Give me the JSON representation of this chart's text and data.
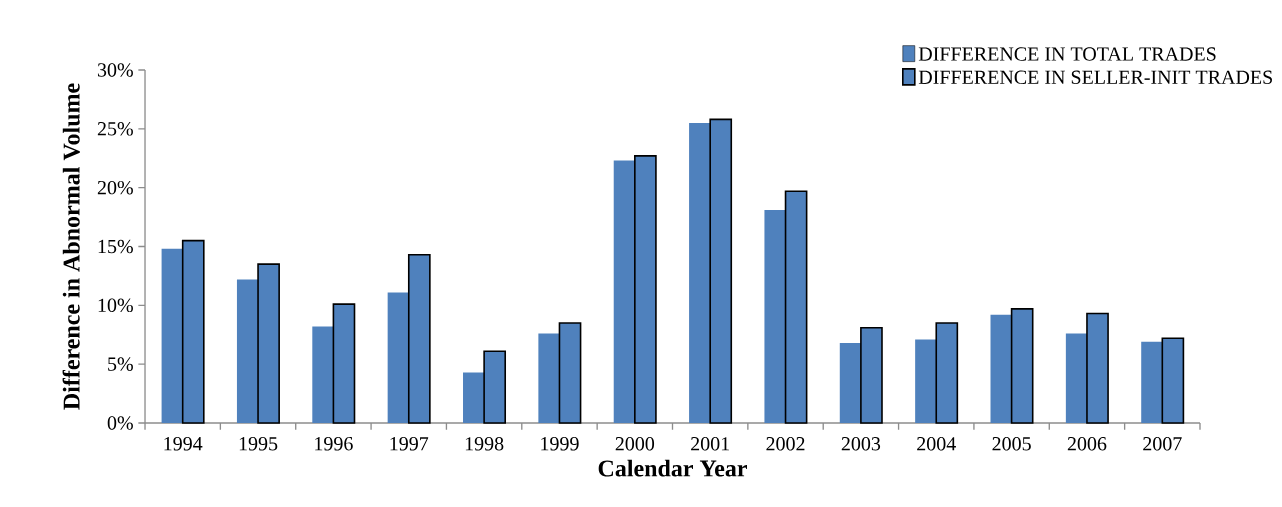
{
  "chart_data": {
    "type": "bar",
    "xlabel": "Calendar Year",
    "ylabel": "Difference in Abnormal Volume",
    "categories": [
      "1994",
      "1995",
      "1996",
      "1997",
      "1998",
      "1999",
      "2000",
      "2001",
      "2002",
      "2003",
      "2004",
      "2005",
      "2006",
      "2007"
    ],
    "series": [
      {
        "name": "DIFFERENCE IN TOTAL TRADES",
        "color": "#4f81bd",
        "values": [
          14.8,
          12.2,
          8.2,
          11.1,
          4.3,
          7.6,
          22.3,
          25.5,
          18.1,
          6.8,
          7.1,
          9.2,
          7.6,
          6.9
        ]
      },
      {
        "name": "DIFFERENCE IN SELLER-INIT TRADES",
        "color": "#4f81bd",
        "values": [
          15.5,
          13.5,
          10.1,
          14.3,
          6.1,
          8.5,
          22.7,
          25.8,
          19.7,
          8.1,
          8.5,
          9.7,
          9.3,
          7.2
        ]
      }
    ],
    "ylim": [
      0,
      30
    ],
    "yticks": [
      {
        "value": 0,
        "label": "0%"
      },
      {
        "value": 5,
        "label": "5%"
      },
      {
        "value": 10,
        "label": "10%"
      },
      {
        "value": 15,
        "label": "15%"
      },
      {
        "value": 20,
        "label": "20%"
      },
      {
        "value": 25,
        "label": "25%"
      },
      {
        "value": 30,
        "label": "30%"
      }
    ],
    "legend": "top right",
    "grid": false
  }
}
